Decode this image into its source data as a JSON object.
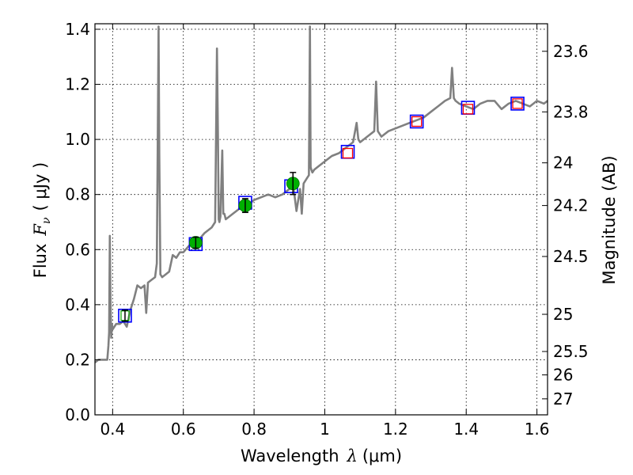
{
  "chart_data": {
    "type": "line",
    "title": "",
    "xlabel": "Wavelength",
    "xlabel_symbol": "λ",
    "xlabel_unit": "(μm)",
    "ylabel": "Flux",
    "ylabel_symbol_base": "F",
    "ylabel_symbol_sub": "ν",
    "ylabel_unit": "( μJy )",
    "ylabel_right": "Magnitude (AB)",
    "xlim": [
      0.35,
      1.63
    ],
    "ylim": [
      0,
      1.42
    ],
    "grid": true,
    "x_ticks": [
      0.4,
      0.6,
      0.8,
      1.0,
      1.2,
      1.4,
      1.6
    ],
    "x_tick_labels": [
      "0.4",
      "0.6",
      "0.8",
      "1",
      "1.2",
      "1.4",
      "1.6"
    ],
    "y_ticks": [
      0.0,
      0.2,
      0.4,
      0.6,
      0.8,
      1.0,
      1.2,
      1.4
    ],
    "y_tick_labels": [
      "0.0",
      "0.2",
      "0.4",
      "0.6",
      "0.8",
      "1.0",
      "1.2",
      "1.4"
    ],
    "right_ticks": [
      {
        "label": "23.6",
        "flux": 1.32
      },
      {
        "label": "23.8",
        "flux": 1.1
      },
      {
        "label": "24",
        "flux": 0.915
      },
      {
        "label": "24.2",
        "flux": 0.76
      },
      {
        "label": "24.5",
        "flux": 0.575
      },
      {
        "label": "25",
        "flux": 0.365
      },
      {
        "label": "25.5",
        "flux": 0.23
      },
      {
        "label": "26",
        "flux": 0.145
      },
      {
        "label": "27",
        "flux": 0.058
      }
    ],
    "spectrum": {
      "color": "#808080",
      "x": [
        0.35,
        0.36,
        0.37,
        0.38,
        0.385,
        0.388,
        0.39,
        0.392,
        0.394,
        0.396,
        0.398,
        0.4,
        0.41,
        0.42,
        0.43,
        0.44,
        0.45,
        0.46,
        0.47,
        0.48,
        0.49,
        0.495,
        0.5,
        0.51,
        0.52,
        0.525,
        0.528,
        0.53,
        0.532,
        0.535,
        0.54,
        0.55,
        0.56,
        0.57,
        0.58,
        0.59,
        0.6,
        0.62,
        0.64,
        0.66,
        0.68,
        0.69,
        0.695,
        0.698,
        0.7,
        0.702,
        0.705,
        0.71,
        0.713,
        0.716,
        0.72,
        0.74,
        0.76,
        0.78,
        0.8,
        0.82,
        0.84,
        0.86,
        0.88,
        0.9,
        0.91,
        0.92,
        0.93,
        0.935,
        0.94,
        0.95,
        0.955,
        0.958,
        0.96,
        0.962,
        0.965,
        0.97,
        0.98,
        1.0,
        1.02,
        1.04,
        1.06,
        1.08,
        1.09,
        1.095,
        1.1,
        1.12,
        1.14,
        1.145,
        1.15,
        1.16,
        1.18,
        1.2,
        1.22,
        1.24,
        1.26,
        1.28,
        1.3,
        1.32,
        1.34,
        1.355,
        1.36,
        1.365,
        1.37,
        1.38,
        1.4,
        1.42,
        1.44,
        1.46,
        1.48,
        1.5,
        1.52,
        1.54,
        1.56,
        1.58,
        1.6,
        1.62,
        1.63
      ],
      "y": [
        0.19,
        0.2,
        0.2,
        0.2,
        0.2,
        0.25,
        0.3,
        0.65,
        0.4,
        0.28,
        0.33,
        0.31,
        0.33,
        0.33,
        0.34,
        0.32,
        0.38,
        0.42,
        0.47,
        0.46,
        0.47,
        0.37,
        0.48,
        0.49,
        0.5,
        0.55,
        1.05,
        1.41,
        0.95,
        0.51,
        0.5,
        0.51,
        0.52,
        0.58,
        0.57,
        0.59,
        0.59,
        0.62,
        0.63,
        0.66,
        0.68,
        0.7,
        1.33,
        1.0,
        0.71,
        0.7,
        0.72,
        0.96,
        0.73,
        0.73,
        0.71,
        0.73,
        0.75,
        0.76,
        0.78,
        0.79,
        0.8,
        0.79,
        0.8,
        0.82,
        0.84,
        0.74,
        0.82,
        0.73,
        0.84,
        0.86,
        0.87,
        1.41,
        0.9,
        0.89,
        0.88,
        0.89,
        0.9,
        0.92,
        0.94,
        0.95,
        0.97,
        0.99,
        1.06,
        1.0,
        0.99,
        1.01,
        1.03,
        1.21,
        1.03,
        1.01,
        1.03,
        1.04,
        1.05,
        1.06,
        1.07,
        1.08,
        1.1,
        1.12,
        1.14,
        1.15,
        1.26,
        1.15,
        1.14,
        1.13,
        1.12,
        1.11,
        1.13,
        1.14,
        1.14,
        1.11,
        1.13,
        1.14,
        1.13,
        1.12,
        1.14,
        1.13,
        1.14
      ]
    },
    "observed_points": [
      {
        "x": 0.435,
        "y": 0.36,
        "err": 0.02
      },
      {
        "x": 0.635,
        "y": 0.625,
        "err": 0.02
      },
      {
        "x": 0.775,
        "y": 0.76,
        "err": 0.025
      },
      {
        "x": 0.91,
        "y": 0.84,
        "err": 0.04
      }
    ],
    "blue_squares": [
      {
        "x": 0.435,
        "y": 0.36
      },
      {
        "x": 0.635,
        "y": 0.62
      },
      {
        "x": 0.775,
        "y": 0.77
      },
      {
        "x": 0.905,
        "y": 0.83
      },
      {
        "x": 1.065,
        "y": 0.955
      },
      {
        "x": 1.26,
        "y": 1.065
      },
      {
        "x": 1.405,
        "y": 1.115
      },
      {
        "x": 1.545,
        "y": 1.13
      }
    ],
    "red_squares": [
      {
        "x": 1.065,
        "y": 0.95
      },
      {
        "x": 1.26,
        "y": 1.065
      },
      {
        "x": 1.405,
        "y": 1.11
      },
      {
        "x": 1.545,
        "y": 1.13
      }
    ],
    "colors": {
      "spectrum": "#808080",
      "observed": "#00b000",
      "blue_square": "#0000ff",
      "red_square": "#ff0000",
      "green_square": "#00a000",
      "grid": "#000000"
    }
  }
}
